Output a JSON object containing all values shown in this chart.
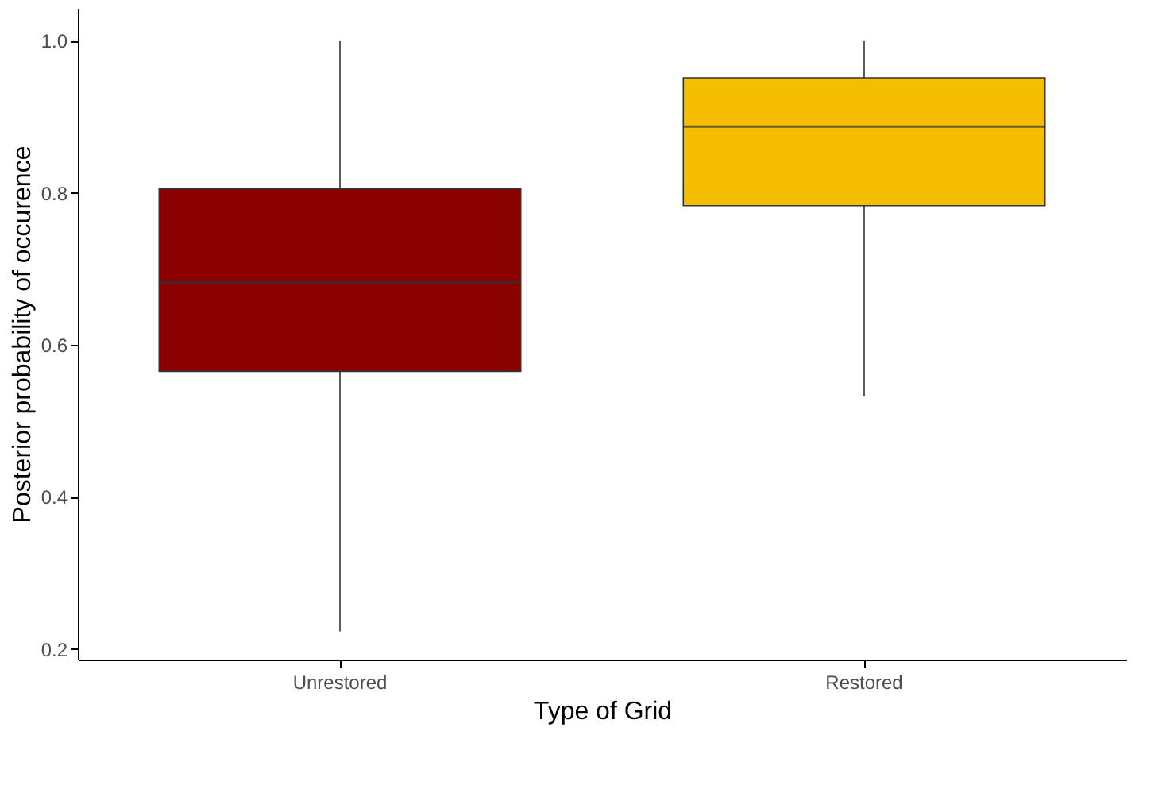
{
  "chart_data": {
    "type": "box",
    "xlabel": "Type of Grid",
    "ylabel": "Posterior probability of occurence",
    "categories": [
      "Unrestored",
      "Restored"
    ],
    "colors": [
      "#8b0000",
      "#f5bf00"
    ],
    "boxes": [
      {
        "low": 0.223,
        "q1": 0.565,
        "median": 0.682,
        "q3": 0.805,
        "high": 1.0
      },
      {
        "low": 0.532,
        "q1": 0.783,
        "median": 0.887,
        "q3": 0.951,
        "high": 1.0
      }
    ],
    "ylim": [
      0.186,
      1.043
    ],
    "yticks": [
      {
        "value": 0.2,
        "label": "0.2"
      },
      {
        "value": 0.4,
        "label": "0.4"
      },
      {
        "value": 0.6,
        "label": "0.6"
      },
      {
        "value": 0.8,
        "label": "0.8"
      },
      {
        "value": 1.0,
        "label": "1.0"
      }
    ],
    "grid": false
  }
}
